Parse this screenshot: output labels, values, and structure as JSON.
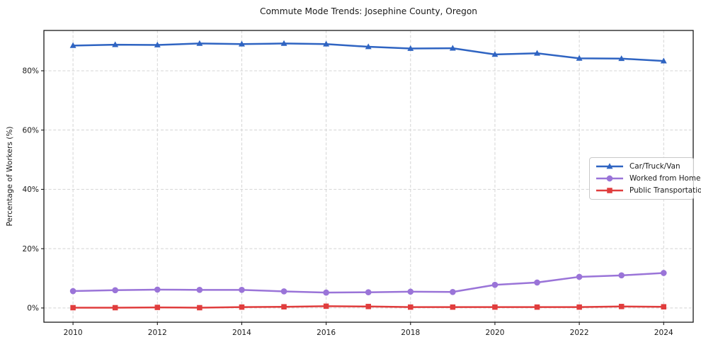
{
  "chart": {
    "title": "Commute Mode Trends: Josephine County, Oregon",
    "ylabel": "Percentage of Workers (%)"
  },
  "chart_data": {
    "type": "line",
    "title": "Commute Mode Trends: Josephine County, Oregon",
    "xlabel": "",
    "ylabel": "Percentage of Workers (%)",
    "x": [
      2010,
      2011,
      2012,
      2013,
      2014,
      2015,
      2016,
      2017,
      2018,
      2019,
      2020,
      2021,
      2022,
      2023,
      2024
    ],
    "series": [
      {
        "name": "Car/Truck/Van",
        "color": "#2f64c2",
        "marker": "triangle-up",
        "values": [
          88.5,
          88.8,
          88.7,
          89.2,
          89.0,
          89.2,
          89.0,
          88.1,
          87.5,
          87.6,
          85.5,
          85.9,
          84.2,
          84.1,
          83.3
        ]
      },
      {
        "name": "Worked from Home",
        "color": "#9a74d8",
        "marker": "circle",
        "values": [
          5.7,
          6.0,
          6.2,
          6.1,
          6.1,
          5.6,
          5.2,
          5.3,
          5.5,
          5.4,
          7.8,
          8.6,
          10.5,
          11.0,
          11.8
        ]
      },
      {
        "name": "Public Transportation",
        "color": "#e03d3d",
        "marker": "square",
        "values": [
          0.1,
          0.1,
          0.2,
          0.1,
          0.3,
          0.4,
          0.6,
          0.5,
          0.3,
          0.3,
          0.3,
          0.3,
          0.3,
          0.5,
          0.4
        ]
      }
    ],
    "x_ticks": [
      2010,
      2012,
      2014,
      2016,
      2018,
      2020,
      2022,
      2024
    ],
    "y_ticks": [
      0,
      20,
      40,
      60,
      80
    ],
    "y_tick_suffix": "%",
    "xlim": [
      2009.31,
      2024.7
    ],
    "ylim": [
      -4.8,
      93.6
    ],
    "grid": true,
    "grid_style": "dashed",
    "legend_position": "center right",
    "colors": {
      "grid": "#d4d4d4",
      "axis": "#1a1a1a",
      "text": "#1a1a1a",
      "background": "#ffffff"
    }
  }
}
